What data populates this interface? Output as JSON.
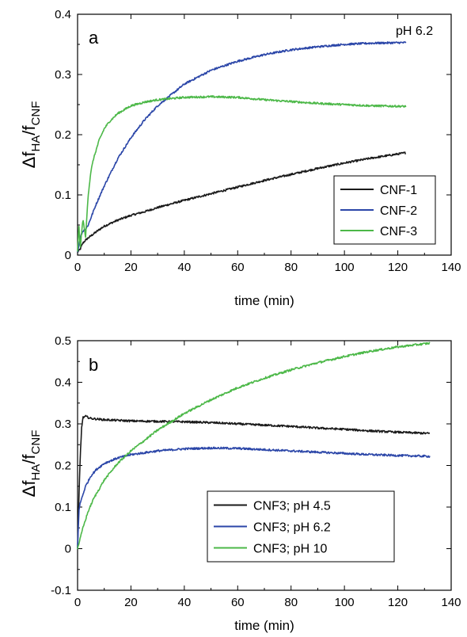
{
  "chart_data": [
    {
      "type": "line",
      "panel_label": "a",
      "annotation": "pH 6.2",
      "xlabel": "time (min)",
      "ylabel_main": "Δf",
      "ylabel_sub1": "HA",
      "ylabel_mid": "/f",
      "ylabel_sub2": "CNF",
      "xlim": [
        0,
        140
      ],
      "ylim": [
        0,
        0.4
      ],
      "xticks": [
        0,
        20,
        40,
        60,
        80,
        100,
        120,
        140
      ],
      "yticks": [
        0,
        0.1,
        0.2,
        0.3,
        0.4
      ],
      "xtick_labels": [
        "0",
        "20",
        "40",
        "60",
        "80",
        "100",
        "120",
        "140"
      ],
      "ytick_labels": [
        "0",
        "0.1",
        "0.2",
        "0.3",
        "0.4"
      ],
      "legend_position": "lower-right",
      "series": [
        {
          "name": "CNF-1",
          "color": "#1a1a1a",
          "x": [
            0,
            1,
            2,
            3,
            5,
            8,
            10,
            15,
            20,
            25,
            30,
            40,
            50,
            60,
            70,
            80,
            90,
            100,
            110,
            123
          ],
          "y": [
            0.005,
            0.01,
            0.02,
            0.025,
            0.032,
            0.042,
            0.048,
            0.058,
            0.066,
            0.072,
            0.079,
            0.091,
            0.102,
            0.113,
            0.124,
            0.134,
            0.144,
            0.153,
            0.161,
            0.17
          ]
        },
        {
          "name": "CNF-2",
          "color": "#2b46a8",
          "x": [
            0,
            1,
            2,
            3,
            4,
            5,
            7,
            10,
            15,
            20,
            25,
            30,
            40,
            50,
            60,
            70,
            80,
            90,
            100,
            110,
            123
          ],
          "y": [
            0.005,
            0.03,
            0.04,
            0.043,
            0.05,
            0.062,
            0.085,
            0.115,
            0.16,
            0.195,
            0.224,
            0.248,
            0.284,
            0.307,
            0.322,
            0.333,
            0.341,
            0.346,
            0.35,
            0.352,
            0.353
          ]
        },
        {
          "name": "CNF-3",
          "color": "#4cb848",
          "x": [
            0,
            0.5,
            1,
            2,
            3,
            4,
            5,
            6,
            8,
            10,
            12,
            15,
            20,
            25,
            30,
            40,
            50,
            60,
            70,
            80,
            90,
            100,
            110,
            123
          ],
          "y": [
            0.005,
            0.05,
            0.01,
            0.06,
            0.03,
            0.1,
            0.14,
            0.16,
            0.19,
            0.21,
            0.222,
            0.235,
            0.248,
            0.254,
            0.258,
            0.262,
            0.263,
            0.262,
            0.258,
            0.255,
            0.252,
            0.25,
            0.248,
            0.247
          ]
        }
      ]
    },
    {
      "type": "line",
      "panel_label": "b",
      "xlabel": "time (min)",
      "ylabel_main": "Δf",
      "ylabel_sub1": "HA",
      "ylabel_mid": "/f",
      "ylabel_sub2": "CNF",
      "xlim": [
        0,
        140
      ],
      "ylim": [
        -0.1,
        0.5
      ],
      "xticks": [
        0,
        20,
        40,
        60,
        80,
        100,
        120,
        140
      ],
      "yticks": [
        -0.1,
        0,
        0.1,
        0.2,
        0.3,
        0.4,
        0.5
      ],
      "xtick_labels": [
        "0",
        "20",
        "40",
        "60",
        "80",
        "100",
        "120",
        "140"
      ],
      "ytick_labels": [
        "-0.1",
        "0",
        "0.1",
        "0.2",
        "0.3",
        "0.4",
        "0.5"
      ],
      "legend_position": "lower-right",
      "series": [
        {
          "name": "CNF3; pH 4.5",
          "color": "#1a1a1a",
          "x": [
            0,
            0.5,
            1,
            1.5,
            2,
            3,
            5,
            10,
            20,
            30,
            40,
            50,
            60,
            70,
            80,
            90,
            100,
            110,
            120,
            132
          ],
          "y": [
            0.0,
            0.12,
            0.22,
            0.29,
            0.315,
            0.318,
            0.313,
            0.31,
            0.307,
            0.306,
            0.305,
            0.303,
            0.3,
            0.297,
            0.294,
            0.29,
            0.287,
            0.283,
            0.28,
            0.277
          ]
        },
        {
          "name": "CNF3; pH 6.2",
          "color": "#2b46a8",
          "x": [
            0,
            0.5,
            1,
            2,
            3,
            5,
            7,
            10,
            15,
            20,
            30,
            40,
            50,
            60,
            70,
            80,
            90,
            100,
            110,
            120,
            132
          ],
          "y": [
            0.0,
            0.09,
            0.11,
            0.13,
            0.15,
            0.175,
            0.19,
            0.205,
            0.218,
            0.226,
            0.235,
            0.24,
            0.242,
            0.241,
            0.238,
            0.235,
            0.232,
            0.229,
            0.226,
            0.224,
            0.222
          ]
        },
        {
          "name": "CNF3; pH 10",
          "color": "#4cb848",
          "x": [
            0,
            1,
            2,
            4,
            6,
            10,
            15,
            20,
            30,
            40,
            50,
            60,
            70,
            80,
            90,
            100,
            110,
            120,
            132
          ],
          "y": [
            0.0,
            0.025,
            0.05,
            0.09,
            0.12,
            0.165,
            0.205,
            0.235,
            0.285,
            0.325,
            0.358,
            0.387,
            0.41,
            0.43,
            0.447,
            0.462,
            0.475,
            0.485,
            0.494
          ]
        }
      ]
    }
  ]
}
